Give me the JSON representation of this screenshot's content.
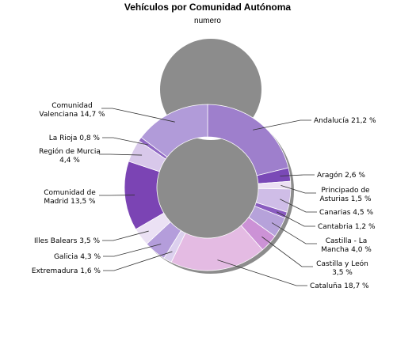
{
  "chart_data": {
    "type": "pie",
    "title": "Vehículos por Comunidad Autónoma",
    "subtitle": "numero",
    "unit": "%",
    "slices": [
      {
        "name": "Andalucía",
        "value": 21.2,
        "label_lines": [
          "Andalucía 21,2 %"
        ],
        "color": "#9e7fcc"
      },
      {
        "name": "Aragón",
        "value": 2.6,
        "label_lines": [
          "Aragón 2,6 %"
        ],
        "color": "#7a49b7"
      },
      {
        "name": "Principado de Asturias",
        "value": 1.5,
        "label_lines": [
          "Principado de",
          "Asturias 1,5 %"
        ],
        "color": "#ece0f3"
      },
      {
        "name": "Canarias",
        "value": 4.5,
        "label_lines": [
          "Canarias 4,5 %"
        ],
        "color": "#cfbde7"
      },
      {
        "name": "Cantabria",
        "value": 1.2,
        "label_lines": [
          "Cantabria 1,2 %"
        ],
        "color": "#8a5cc0"
      },
      {
        "name": "Castilla - La Mancha",
        "value": 4.0,
        "label_lines": [
          "Castilla - La",
          "Mancha 4,0 %"
        ],
        "color": "#b6a2da"
      },
      {
        "name": "Castilla y León",
        "value": 3.5,
        "label_lines": [
          "Castilla y León",
          "3,5 %"
        ],
        "color": "#cc92d6"
      },
      {
        "name": "Cataluña",
        "value": 18.7,
        "label_lines": [
          "Cataluña 18,7 %"
        ],
        "color": "#e4bbe3"
      },
      {
        "name": "Extremadura",
        "value": 1.6,
        "label_lines": [
          "Extremadura 1,6 %"
        ],
        "color": "#dcd0ee"
      },
      {
        "name": "Galicia",
        "value": 4.3,
        "label_lines": [
          "Galicia 4,3 %"
        ],
        "color": "#b49ddb"
      },
      {
        "name": "Illes Balears",
        "value": 3.5,
        "label_lines": [
          "Illes Balears 3,5 %"
        ],
        "color": "#ebe1f4"
      },
      {
        "name": "Comunidad de Madrid",
        "value": 13.5,
        "label_lines": [
          "Comunidad de",
          "Madrid 13,5 %"
        ],
        "color": "#7b44b4"
      },
      {
        "name": "Región de Murcia",
        "value": 4.4,
        "label_lines": [
          "Región de Murcia",
          "4,4 %"
        ],
        "color": "#d8c8ea"
      },
      {
        "name": "La Rioja",
        "value": 0.8,
        "label_lines": [
          "La Rioja 0,8 %"
        ],
        "color": "#9068c4"
      },
      {
        "name": "Comunidad Valenciana",
        "value": 14.7,
        "label_lines": [
          "Comunidad",
          "Valenciana 14,7 %"
        ],
        "color": "#b19bd9"
      }
    ]
  }
}
